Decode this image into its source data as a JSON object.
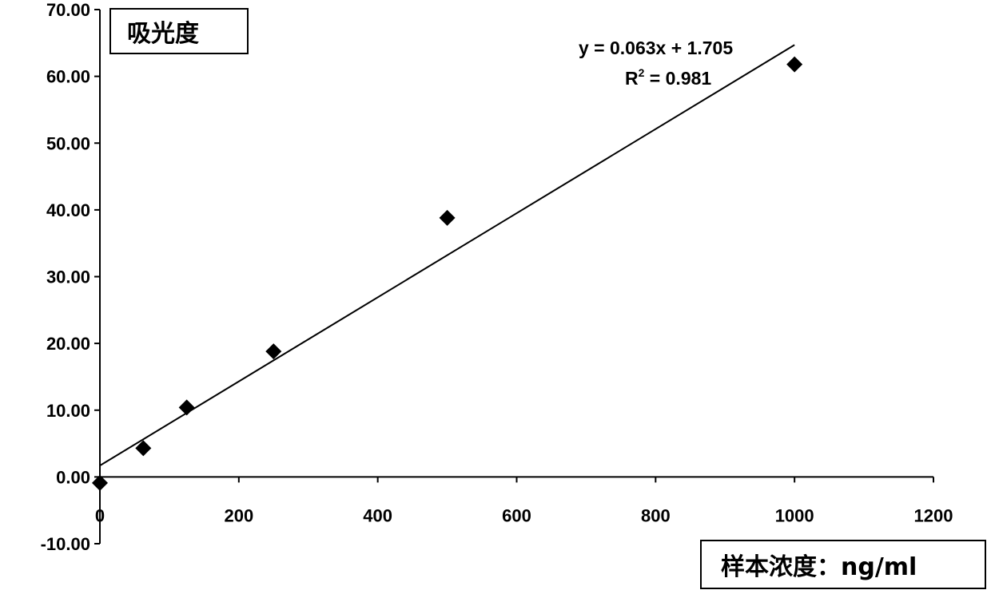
{
  "chart_data": {
    "type": "scatter",
    "title": "",
    "ylabel": "吸光度",
    "xlabel": "样本浓度：ng/ml",
    "xlim": [
      0,
      1200
    ],
    "ylim": [
      -10,
      70
    ],
    "x_ticks": [
      0,
      200,
      400,
      600,
      800,
      1000,
      1200
    ],
    "y_ticks": [
      -10,
      0,
      10,
      20,
      30,
      40,
      50,
      60,
      70
    ],
    "y_tick_labels": [
      "-10.00",
      "0.00",
      "10.00",
      "20.00",
      "30.00",
      "40.00",
      "50.00",
      "60.00",
      "70.00"
    ],
    "x_tick_labels": [
      "0",
      "200",
      "400",
      "600",
      "800",
      "1000",
      "1200"
    ],
    "grid": false,
    "legend": "none",
    "marker": "diamond",
    "marker_color": "#000000",
    "points": [
      {
        "x": 0,
        "y": -0.9
      },
      {
        "x": 62.5,
        "y": 4.3
      },
      {
        "x": 125,
        "y": 10.4
      },
      {
        "x": 250,
        "y": 18.8
      },
      {
        "x": 500,
        "y": 38.8
      },
      {
        "x": 1000,
        "y": 61.8
      }
    ],
    "trendline": {
      "type": "linear",
      "slope": 0.063,
      "intercept": 1.705,
      "x_range": [
        0,
        1000
      ],
      "equation": "y = 0.063x + 1.705",
      "r2_label": "R",
      "r2_sup": "2",
      "r2_value": " = 0.981"
    }
  }
}
